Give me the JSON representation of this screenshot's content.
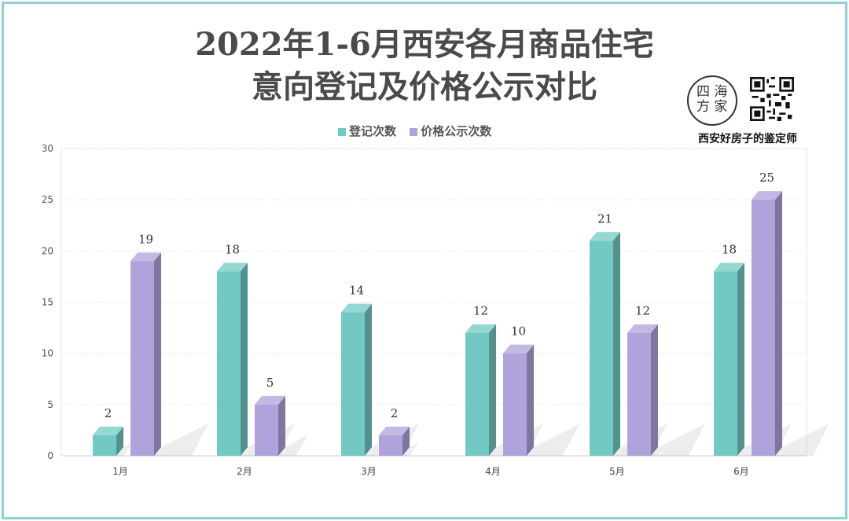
{
  "header": {
    "title_line1": "2022年1-6月西安各月商品住宅",
    "title_line2": "意向登记及价格公示对比"
  },
  "brand": {
    "logo_text": "西海房家",
    "tagline": "西安好房子的鉴定师"
  },
  "colors": {
    "series1": "#72c9c4",
    "series2": "#b0a2da"
  },
  "chart_data": {
    "type": "bar",
    "categories": [
      "1月",
      "2月",
      "3月",
      "4月",
      "5月",
      "6月"
    ],
    "series": [
      {
        "name": "登记次数",
        "values": [
          2,
          18,
          14,
          12,
          21,
          18
        ]
      },
      {
        "name": "价格公示次数",
        "values": [
          19,
          5,
          2,
          10,
          12,
          25
        ]
      }
    ],
    "ylim": [
      0,
      30
    ],
    "yticks": [
      0,
      5,
      10,
      15,
      20,
      25,
      30
    ],
    "grid": true,
    "legend": "top"
  }
}
